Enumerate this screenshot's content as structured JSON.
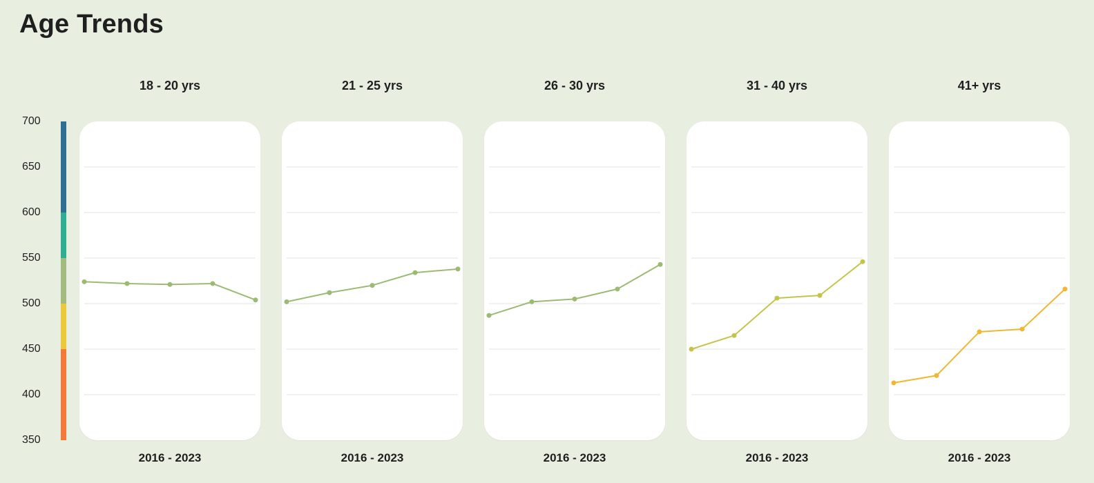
{
  "page": {
    "title": "Age Trends"
  },
  "y_axis_ticks": [
    "700",
    "650",
    "600",
    "550",
    "500",
    "450",
    "400",
    "350"
  ],
  "score_bands": [
    {
      "from": 350,
      "to": 450,
      "color": "#f47a3c"
    },
    {
      "from": 450,
      "to": 500,
      "color": "#ecc93a"
    },
    {
      "from": 500,
      "to": 550,
      "color": "#a4bb7f"
    },
    {
      "from": 550,
      "to": 600,
      "color": "#2fae94"
    },
    {
      "from": 600,
      "to": 700,
      "color": "#2f6f93"
    }
  ],
  "chart_data": {
    "type": "line",
    "ylim": [
      350,
      700
    ],
    "yticks": [
      350,
      400,
      450,
      500,
      550,
      600,
      650,
      700
    ],
    "grid": true,
    "panels": [
      {
        "title": "18 - 20 yrs",
        "footer": "2016 - 2023",
        "color": "#9cba72",
        "values": [
          524,
          522,
          521,
          522,
          504
        ]
      },
      {
        "title": "21 - 25 yrs",
        "footer": "2016 - 2023",
        "color": "#9cba72",
        "values": [
          502,
          512,
          520,
          534,
          538
        ]
      },
      {
        "title": "26 - 30 yrs",
        "footer": "2016 - 2023",
        "color": "#9cba72",
        "values": [
          487,
          502,
          505,
          516,
          543
        ]
      },
      {
        "title": "31 - 40 yrs",
        "footer": "2016 - 2023",
        "color": "#c5c44a",
        "values": [
          450,
          465,
          506,
          509,
          546
        ]
      },
      {
        "title": "41+ yrs",
        "footer": "2016 - 2023",
        "color": "#f2b631",
        "values": [
          413,
          421,
          469,
          472,
          516
        ]
      }
    ]
  }
}
